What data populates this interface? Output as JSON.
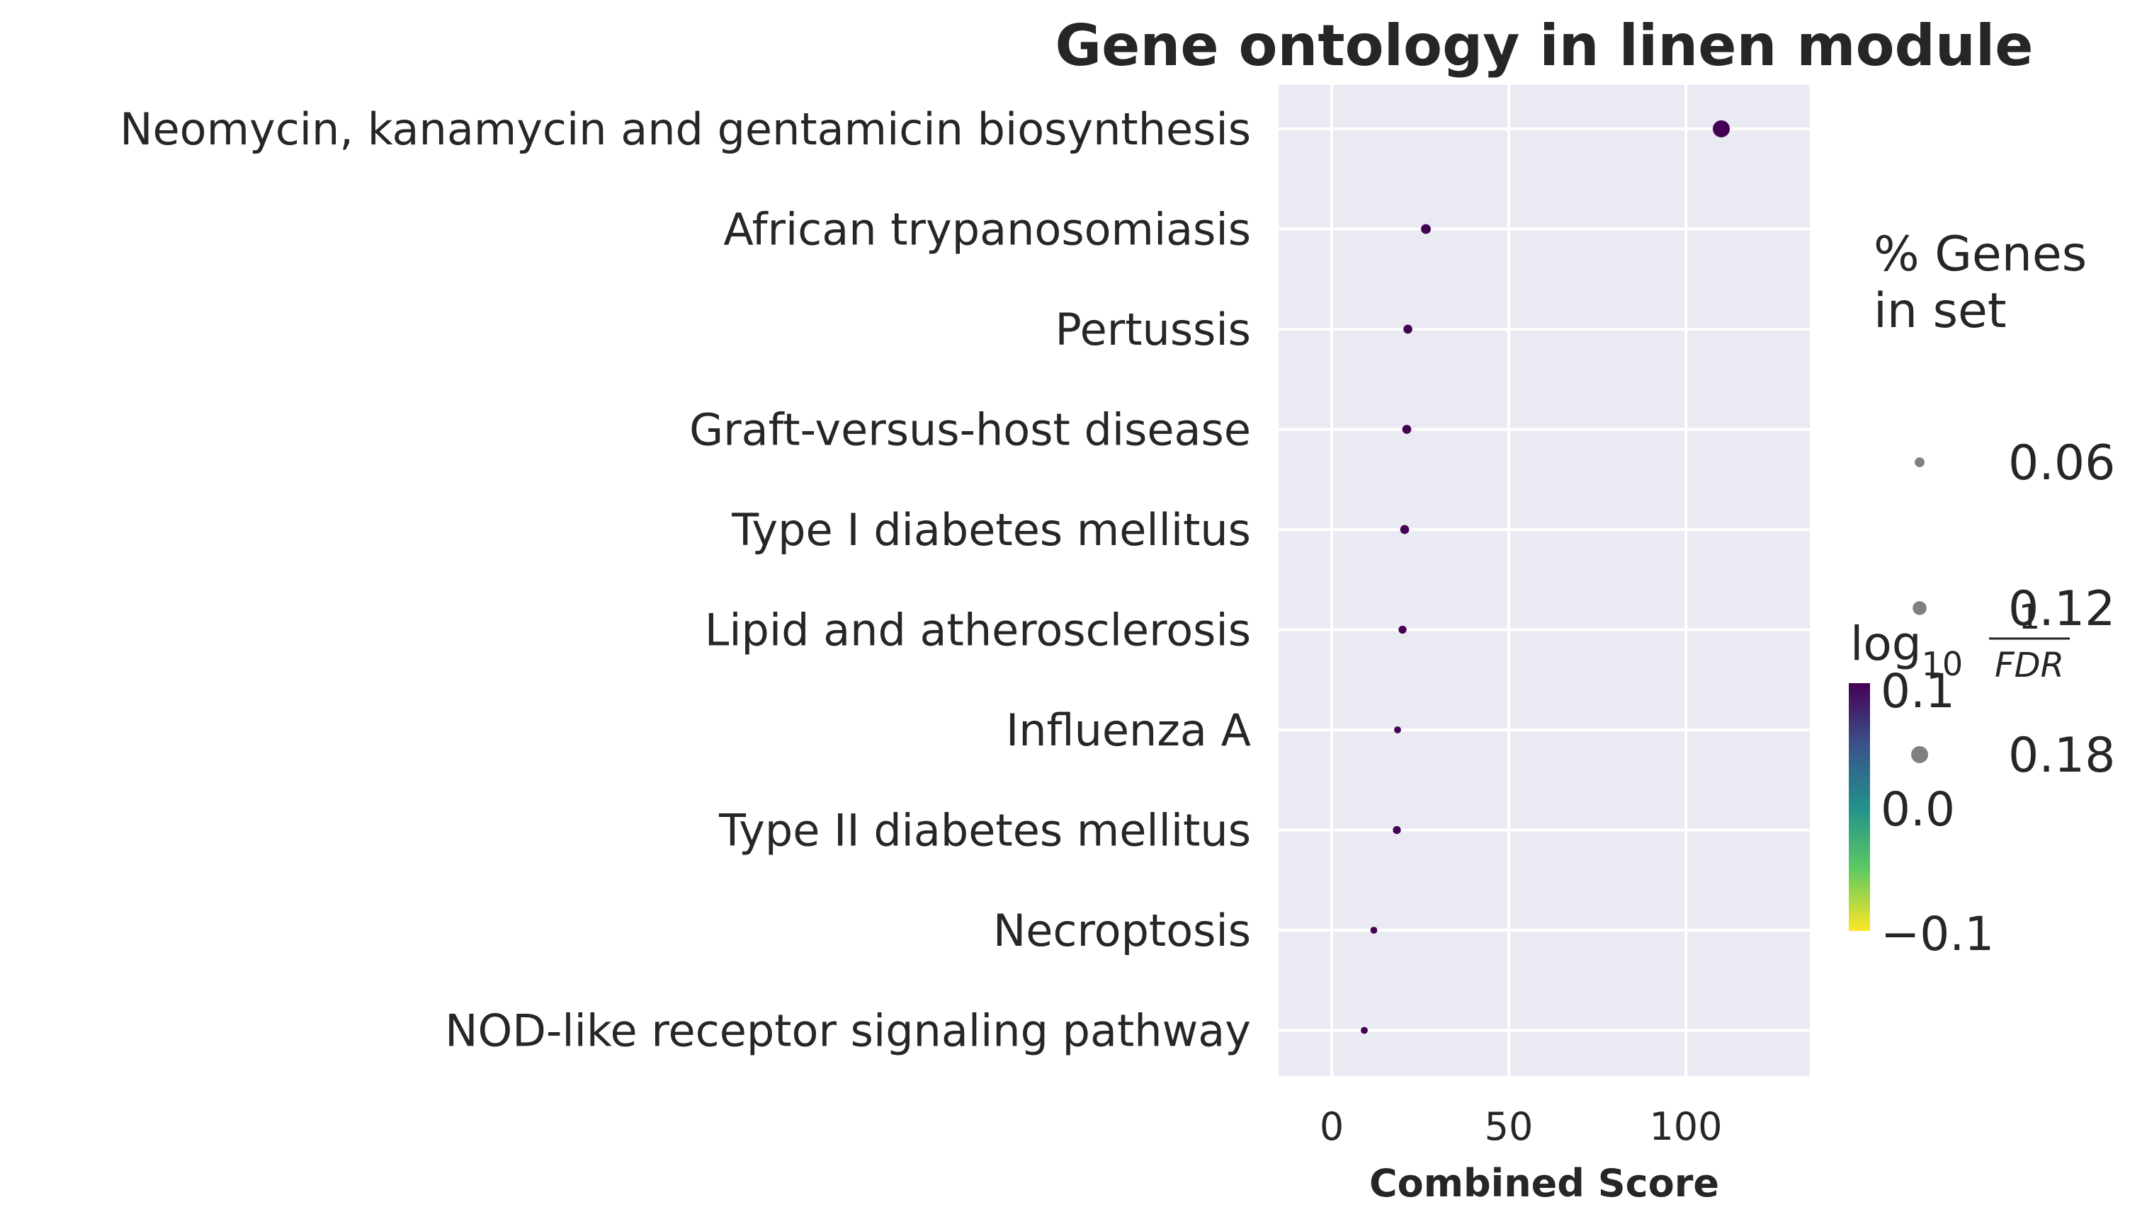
{
  "chart_data": {
    "type": "scatter",
    "title": "Gene ontology in linen module",
    "xlabel": "Combined Score",
    "ylabel": "",
    "xlim": [
      -15,
      135
    ],
    "xticks": [
      0,
      50,
      100
    ],
    "grid": true,
    "categories": [
      "Neomycin, kanamycin and gentamicin biosynthesis",
      "African trypanosomiasis",
      "Pertussis",
      "Graft-versus-host disease",
      "Type I diabetes mellitus",
      "Lipid and atherosclerosis",
      "Influenza A",
      "Type II diabetes mellitus",
      "Necroptosis",
      "NOD-like receptor signaling pathway"
    ],
    "x": [
      110.0,
      26.6,
      21.5,
      21.2,
      20.6,
      20.0,
      18.6,
      18.4,
      11.9,
      9.2
    ],
    "pct_genes": [
      0.18,
      0.06,
      0.05,
      0.05,
      0.05,
      0.04,
      0.03,
      0.04,
      0.03,
      0.03
    ],
    "log10_inv_fdr": [
      0.1,
      0.1,
      0.1,
      0.1,
      0.1,
      0.1,
      0.1,
      0.1,
      0.1,
      0.1
    ],
    "size_legend": {
      "title_line1": "% Genes",
      "title_line2": "in set",
      "values": [
        "0.06",
        "0.12",
        "0.18"
      ]
    },
    "colorbar": {
      "title_prefix": "log",
      "title_sub": "10",
      "frac_num": "1",
      "frac_den": "FDR",
      "colormap": "viridis",
      "range": [
        -0.1,
        0.1
      ],
      "ticks": [
        "0.1",
        "0.0",
        "−0.1"
      ]
    },
    "colors": {
      "plot_bg": "#eaeaf2",
      "grid": "#ffffff",
      "marker": "#440154",
      "legend_marker": "#808080"
    }
  }
}
